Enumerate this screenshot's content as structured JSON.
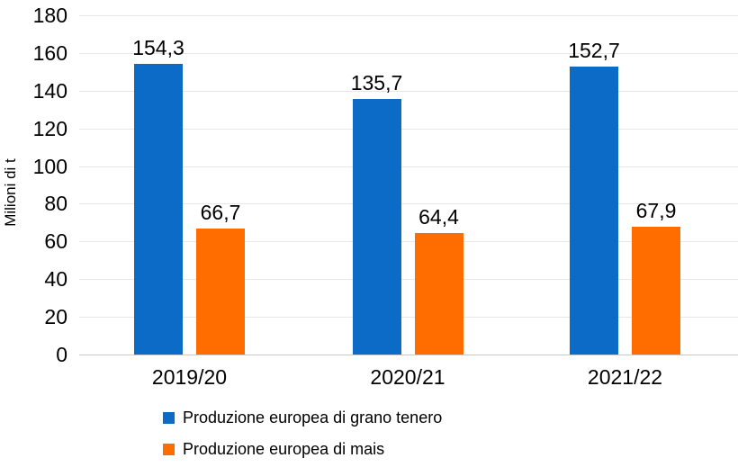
{
  "chart_data": {
    "type": "bar",
    "title": "",
    "xlabel": "",
    "ylabel": "Milioni di t",
    "ylim": [
      0,
      180
    ],
    "ytick_step": 20,
    "grid": true,
    "legend_position": "bottom-left",
    "categories": [
      "2019/20",
      "2020/21",
      "2021/22"
    ],
    "series": [
      {
        "name": "Produzione europea di grano tenero",
        "color": "#0c6bc6",
        "values": [
          154.3,
          135.7,
          152.7
        ],
        "value_labels": [
          "154,3",
          "135,7",
          "152,7"
        ]
      },
      {
        "name": "Produzione europea di mais",
        "color": "#ff6d01",
        "values": [
          66.7,
          64.4,
          67.9
        ],
        "value_labels": [
          "66,7",
          "64,4",
          "67,9"
        ]
      }
    ]
  },
  "colors": {
    "gridline": "#e7e7e7",
    "axis_line": "#c9c9c9",
    "text": "#000000",
    "background": "#ffffff"
  }
}
